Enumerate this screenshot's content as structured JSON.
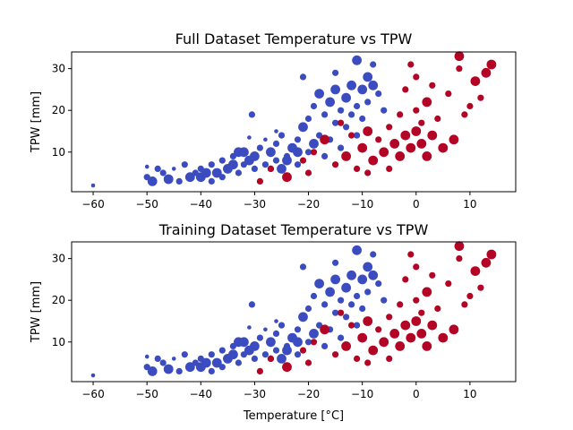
{
  "chart_data": [
    {
      "type": "scatter",
      "title": "Full Dataset Temperature vs TPW",
      "xlabel": "",
      "ylabel": "TPW [mm]",
      "xlim": [
        -64,
        18.5
      ],
      "ylim": [
        0.5,
        34
      ],
      "xticks": [
        -60,
        -50,
        -40,
        -30,
        -20,
        -10,
        0,
        10
      ],
      "yticks": [
        10,
        20,
        30
      ],
      "colors": {
        "cold": "#3b4cc0",
        "warm": "#b40426"
      },
      "grid": false
    },
    {
      "type": "scatter",
      "title": "Training Dataset Temperature vs TPW",
      "xlabel": "Temperature [°C]",
      "ylabel": "TPW [mm]",
      "xlim": [
        -64,
        18.5
      ],
      "ylim": [
        0.5,
        34
      ],
      "xticks": [
        -60,
        -50,
        -40,
        -30,
        -20,
        -10,
        0,
        10
      ],
      "yticks": [
        10,
        20,
        30
      ],
      "colors": {
        "cold": "#3b4cc0",
        "warm": "#b40426"
      },
      "grid": false
    }
  ],
  "points": [
    [
      -60,
      2,
      "c",
      1
    ],
    [
      -50,
      6.5,
      "c",
      1
    ],
    [
      -50,
      4,
      "c",
      2
    ],
    [
      -49,
      3,
      "c",
      3
    ],
    [
      -48,
      6,
      "c",
      2
    ],
    [
      -47,
      5,
      "c",
      2
    ],
    [
      -46,
      3.5,
      "c",
      3
    ],
    [
      -45,
      6,
      "c",
      1
    ],
    [
      -44,
      3,
      "c",
      2
    ],
    [
      -43,
      7,
      "c",
      2
    ],
    [
      -42,
      4,
      "c",
      3
    ],
    [
      -41,
      5,
      "c",
      2
    ],
    [
      -40,
      4,
      "c",
      3
    ],
    [
      -40,
      6,
      "c",
      2
    ],
    [
      -39,
      5,
      "c",
      3
    ],
    [
      -38,
      3,
      "c",
      2
    ],
    [
      -38,
      7,
      "c",
      2
    ],
    [
      -37,
      5,
      "c",
      3
    ],
    [
      -36,
      4,
      "c",
      2
    ],
    [
      -36,
      8,
      "c",
      2
    ],
    [
      -35,
      6,
      "c",
      3
    ],
    [
      -34,
      9,
      "c",
      2
    ],
    [
      -34,
      7,
      "c",
      3
    ],
    [
      -33,
      5,
      "c",
      2
    ],
    [
      -32,
      10,
      "c",
      3
    ],
    [
      -32,
      7,
      "c",
      2
    ],
    [
      -31,
      8,
      "c",
      3
    ],
    [
      -30,
      6,
      "c",
      2
    ],
    [
      -30,
      9,
      "c",
      3
    ],
    [
      -29,
      11,
      "c",
      2
    ],
    [
      -28,
      13,
      "c",
      1
    ],
    [
      -28,
      7,
      "c",
      2
    ],
    [
      -27,
      10,
      "c",
      3
    ],
    [
      -26,
      8,
      "c",
      2
    ],
    [
      -26,
      12,
      "c",
      2
    ],
    [
      -25,
      6,
      "c",
      3
    ],
    [
      -25,
      14,
      "c",
      2
    ],
    [
      -24,
      9,
      "c",
      2
    ],
    [
      -23,
      11,
      "c",
      3
    ],
    [
      -22,
      13,
      "c",
      2
    ],
    [
      -22,
      7,
      "c",
      2
    ],
    [
      -21,
      16,
      "c",
      3
    ],
    [
      -20,
      10,
      "c",
      2
    ],
    [
      -20,
      18,
      "c",
      2
    ],
    [
      -19,
      12,
      "c",
      3
    ],
    [
      -19,
      21,
      "c",
      2
    ],
    [
      -18,
      14,
      "c",
      2
    ],
    [
      -18,
      24,
      "c",
      3
    ],
    [
      -17,
      9,
      "c",
      2
    ],
    [
      -17,
      19,
      "c",
      2
    ],
    [
      -16,
      22,
      "c",
      3
    ],
    [
      -16,
      13,
      "c",
      2
    ],
    [
      -15,
      17,
      "c",
      2
    ],
    [
      -15,
      25,
      "c",
      3
    ],
    [
      -14,
      20,
      "c",
      2
    ],
    [
      -14,
      11,
      "c",
      2
    ],
    [
      -13,
      23,
      "c",
      3
    ],
    [
      -13,
      16,
      "c",
      2
    ],
    [
      -12,
      19,
      "c",
      2
    ],
    [
      -12,
      26,
      "c",
      3
    ],
    [
      -11,
      21,
      "c",
      2
    ],
    [
      -11,
      14,
      "c",
      2
    ],
    [
      -10,
      25,
      "c",
      3
    ],
    [
      -10,
      18,
      "c",
      2
    ],
    [
      -9,
      28,
      "c",
      3
    ],
    [
      -9,
      22,
      "c",
      2
    ],
    [
      -8,
      31,
      "c",
      2
    ],
    [
      -8,
      26,
      "c",
      3
    ],
    [
      -7,
      24,
      "c",
      2
    ],
    [
      -6,
      20,
      "c",
      2
    ],
    [
      -30.5,
      19,
      "c",
      2
    ],
    [
      -24,
      8,
      "c",
      3
    ],
    [
      -31,
      13.5,
      "c",
      1
    ],
    [
      -33,
      10,
      "c",
      3
    ],
    [
      -22,
      10,
      "c",
      3
    ],
    [
      -27,
      6,
      "c",
      2
    ],
    [
      -21,
      28,
      "c",
      2
    ],
    [
      -26,
      15,
      "c",
      1
    ],
    [
      -15,
      29,
      "c",
      2
    ],
    [
      -11,
      32,
      "c",
      3
    ],
    [
      -29,
      3,
      "w",
      2
    ],
    [
      -27,
      6,
      "w",
      2
    ],
    [
      -24,
      4,
      "w",
      3
    ],
    [
      -21,
      8,
      "w",
      2
    ],
    [
      -19,
      10,
      "w",
      2
    ],
    [
      -17,
      13,
      "w",
      3
    ],
    [
      -15,
      7,
      "w",
      2
    ],
    [
      -14,
      17,
      "w",
      2
    ],
    [
      -13,
      9,
      "w",
      3
    ],
    [
      -12,
      14,
      "w",
      2
    ],
    [
      -11,
      6,
      "w",
      2
    ],
    [
      -10,
      11,
      "w",
      3
    ],
    [
      -9,
      15,
      "w",
      3
    ],
    [
      -9,
      5,
      "w",
      2
    ],
    [
      -8,
      8,
      "w",
      3
    ],
    [
      -7,
      13,
      "w",
      2
    ],
    [
      -6,
      10,
      "w",
      3
    ],
    [
      -5,
      16,
      "w",
      2
    ],
    [
      -5,
      6,
      "w",
      2
    ],
    [
      -4,
      12,
      "w",
      3
    ],
    [
      -3,
      9,
      "w",
      3
    ],
    [
      -3,
      19,
      "w",
      2
    ],
    [
      -2,
      14,
      "w",
      3
    ],
    [
      -2,
      25,
      "w",
      2
    ],
    [
      -1,
      11,
      "w",
      3
    ],
    [
      -1,
      31,
      "w",
      2
    ],
    [
      0,
      15,
      "w",
      3
    ],
    [
      0,
      20,
      "w",
      2
    ],
    [
      0,
      28,
      "w",
      2
    ],
    [
      1,
      12,
      "w",
      3
    ],
    [
      1,
      17,
      "w",
      2
    ],
    [
      2,
      22,
      "w",
      3
    ],
    [
      2,
      9,
      "w",
      3
    ],
    [
      3,
      26,
      "w",
      2
    ],
    [
      3,
      14,
      "w",
      3
    ],
    [
      4,
      18,
      "w",
      2
    ],
    [
      5,
      11,
      "w",
      3
    ],
    [
      6,
      24,
      "w",
      2
    ],
    [
      7,
      13,
      "w",
      3
    ],
    [
      8,
      30,
      "w",
      2
    ],
    [
      8,
      33,
      "w",
      3
    ],
    [
      9,
      19,
      "w",
      2
    ],
    [
      10,
      21,
      "w",
      2
    ],
    [
      11,
      27,
      "w",
      3
    ],
    [
      12,
      23,
      "w",
      2
    ],
    [
      13,
      29,
      "w",
      3
    ],
    [
      14,
      31,
      "w",
      3
    ],
    [
      -20,
      5,
      "w",
      2
    ]
  ]
}
